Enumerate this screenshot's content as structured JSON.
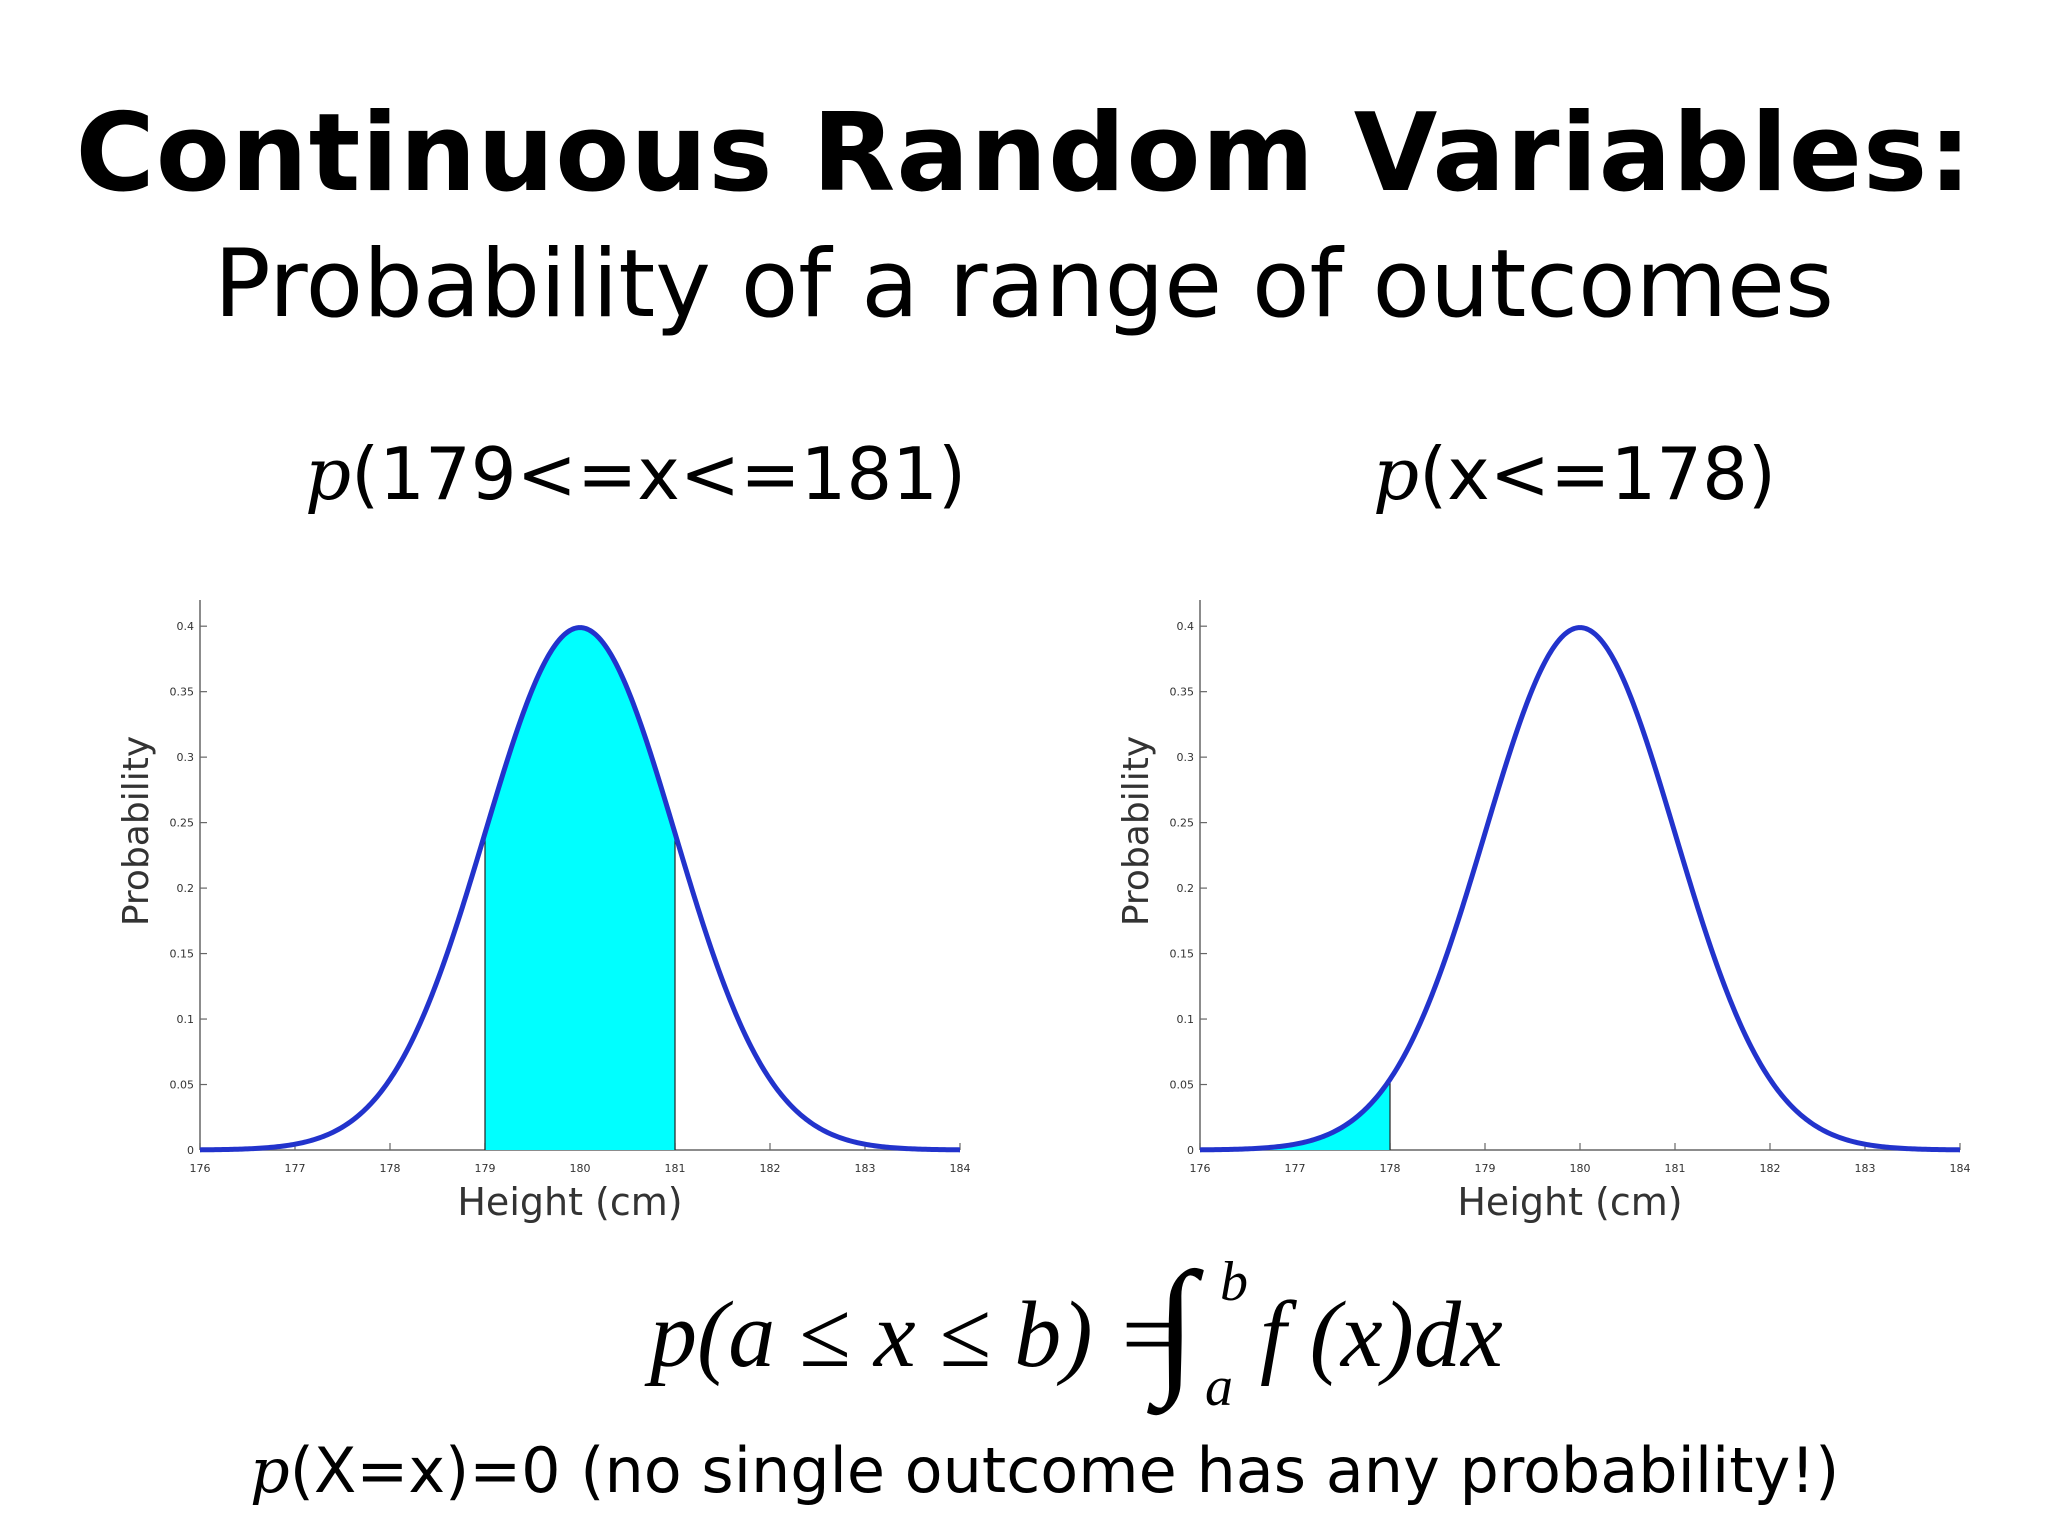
{
  "slide": {
    "title": "Continuous Random Variables:",
    "subtitle": "Probability of a range of outcomes",
    "left_label": {
      "p": "p",
      "rest": "(179<=x<=181)"
    },
    "right_label": {
      "p": "p",
      "rest": "(x<=178)"
    },
    "formula": {
      "lhs": "p(a ≤ x ≤ b) =",
      "integral": "∫",
      "upper": "b",
      "lower": "a",
      "rhs": "f (x)dx"
    },
    "footnote": {
      "p": "p",
      "rest": "(X=x)=0 (no single outcome has any probability!)"
    }
  },
  "colors": {
    "curve": "#2233cc",
    "fill": "#00ffff"
  },
  "chart_data": [
    {
      "type": "area",
      "distribution": "normal",
      "mean": 180,
      "sd": 1,
      "shaded_range": [
        179,
        181
      ],
      "xlabel": "Height (cm)",
      "ylabel": "Probability",
      "xlim": [
        176,
        184
      ],
      "ylim": [
        0,
        0.42
      ],
      "x_ticks": [
        "176",
        "177",
        "178",
        "179",
        "180",
        "181",
        "182",
        "183",
        "184"
      ],
      "y_ticks": [
        "0",
        "0.05",
        "0.1",
        "0.15",
        "0.2",
        "0.25",
        "0.3",
        "0.35",
        "0.4"
      ],
      "peak": 0.4
    },
    {
      "type": "area",
      "distribution": "normal",
      "mean": 180,
      "sd": 1,
      "shaded_range": [
        176,
        178
      ],
      "xlabel": "Height (cm)",
      "ylabel": "Probability",
      "xlim": [
        176,
        184
      ],
      "ylim": [
        0,
        0.42
      ],
      "x_ticks": [
        "176",
        "177",
        "178",
        "179",
        "180",
        "181",
        "182",
        "183",
        "184"
      ],
      "y_ticks": [
        "0",
        "0.05",
        "0.1",
        "0.15",
        "0.2",
        "0.25",
        "0.3",
        "0.35",
        "0.4"
      ],
      "peak": 0.4
    }
  ]
}
